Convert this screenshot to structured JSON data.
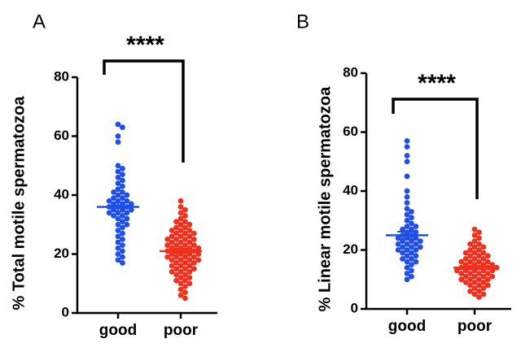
{
  "chart_data": [
    {
      "type": "dotplot",
      "panel": "A",
      "ylabel": "% Total motile spermatozoa",
      "annotation": "****",
      "categories": [
        "good",
        "poor"
      ],
      "ylim": [
        0,
        80
      ],
      "yticks": [
        0,
        20,
        40,
        60,
        80
      ],
      "groups": [
        {
          "color": "#1f4ee8",
          "mean": 36,
          "sem": 1.5,
          "values": [
            64,
            63,
            60,
            58,
            50,
            49,
            48,
            47,
            46,
            45,
            44,
            43,
            42,
            41,
            41,
            40,
            40,
            39,
            39,
            38,
            38,
            38,
            37,
            37,
            37,
            36,
            36,
            36,
            35,
            35,
            35,
            34,
            34,
            34,
            33,
            33,
            32,
            32,
            31,
            30,
            30,
            29,
            28,
            27,
            26,
            25,
            24,
            23,
            22,
            21,
            20,
            19,
            18,
            17
          ]
        },
        {
          "color": "#f0301c",
          "mean": 21,
          "sem": 0.8,
          "values": [
            38,
            36,
            35,
            34,
            33,
            32,
            31,
            31,
            30,
            30,
            29,
            29,
            28,
            28,
            28,
            27,
            27,
            27,
            26,
            26,
            26,
            25,
            25,
            25,
            25,
            24,
            24,
            24,
            23,
            23,
            23,
            23,
            22,
            22,
            22,
            22,
            21,
            21,
            21,
            21,
            20,
            20,
            20,
            20,
            19,
            19,
            19,
            19,
            18,
            18,
            18,
            18,
            17,
            17,
            17,
            16,
            16,
            16,
            15,
            15,
            15,
            14,
            14,
            14,
            13,
            13,
            12,
            12,
            11,
            11,
            10,
            10,
            9,
            8,
            7,
            6,
            5
          ]
        }
      ]
    },
    {
      "type": "dotplot",
      "panel": "B",
      "ylabel": "% Linear motile spermatozoa",
      "annotation": "****",
      "categories": [
        "good",
        "poor"
      ],
      "ylim": [
        0,
        80
      ],
      "yticks": [
        0,
        20,
        40,
        60,
        80
      ],
      "groups": [
        {
          "color": "#1f4ee8",
          "mean": 25,
          "sem": 1.2,
          "values": [
            57,
            55,
            52,
            50,
            45,
            40,
            38,
            36,
            34,
            33,
            32,
            31,
            30,
            29,
            28,
            28,
            27,
            27,
            26,
            26,
            25,
            25,
            24,
            24,
            24,
            23,
            23,
            23,
            22,
            22,
            22,
            21,
            21,
            21,
            20,
            20,
            20,
            19,
            19,
            18,
            18,
            17,
            17,
            16,
            16,
            15,
            14,
            13,
            12,
            11,
            10
          ]
        },
        {
          "color": "#f0301c",
          "mean": 14,
          "sem": 0.6,
          "values": [
            27,
            26,
            25,
            24,
            23,
            22,
            22,
            21,
            21,
            20,
            20,
            19,
            19,
            19,
            18,
            18,
            18,
            17,
            17,
            17,
            16,
            16,
            16,
            16,
            15,
            15,
            15,
            15,
            14,
            14,
            14,
            14,
            14,
            13,
            13,
            13,
            13,
            13,
            12,
            12,
            12,
            12,
            11,
            11,
            11,
            11,
            10,
            10,
            10,
            10,
            9,
            9,
            9,
            8,
            8,
            8,
            7,
            7,
            6,
            6,
            5,
            5,
            4
          ]
        }
      ]
    }
  ]
}
